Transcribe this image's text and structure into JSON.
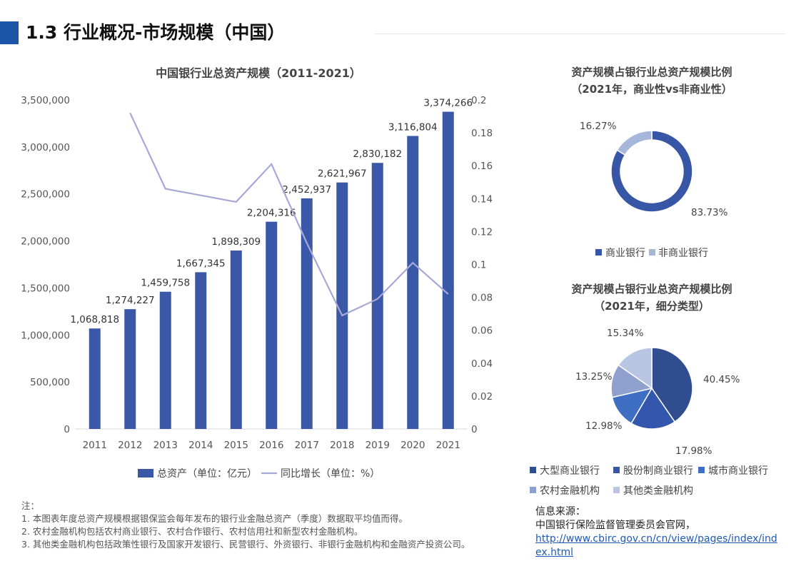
{
  "header": {
    "title": "1.3 行业概况-市场规模（中国）"
  },
  "colors": {
    "bar": "#3b58a8",
    "line": "#a8a8d8",
    "accent": "#1c54a8",
    "commercial": "#3757a6",
    "noncommercial": "#a7b6db",
    "pie": [
      "#2f4d8f",
      "#3556ad",
      "#3f6fc3",
      "#8fa1cf",
      "#b9c6e3"
    ]
  },
  "chart_data": [
    {
      "type": "bar",
      "title": "中国银行业总资产规模（2011-2021）",
      "categories": [
        "2011",
        "2012",
        "2013",
        "2014",
        "2015",
        "2016",
        "2017",
        "2018",
        "2019",
        "2020",
        "2021"
      ],
      "series": [
        {
          "name": "总资产（单位：亿元）",
          "type": "bar",
          "axis": "left",
          "values": [
            1068818,
            1274227,
            1459758,
            1667345,
            1898309,
            2204316,
            2452937,
            2621967,
            2830182,
            3116804,
            3374266
          ],
          "labels": [
            "1,068,818",
            "1,274,227",
            "1,459,758",
            "1,667,345",
            "1,898,309",
            "2,204,316",
            "2,452,937",
            "2,621,967",
            "2,830,182",
            "3,116,804",
            "3,374,266"
          ]
        },
        {
          "name": "同比增长（单位：%）",
          "type": "line",
          "axis": "right",
          "values": [
            null,
            0.192,
            0.146,
            0.142,
            0.138,
            0.161,
            0.113,
            0.069,
            0.079,
            0.101,
            0.082
          ]
        }
      ],
      "ylim_left": [
        0,
        3500000
      ],
      "yticks_left": [
        "0",
        "500,000",
        "1,000,000",
        "1,500,000",
        "2,000,000",
        "2,500,000",
        "3,000,000",
        "3,500,000"
      ],
      "ylim_right": [
        0,
        0.2
      ],
      "yticks_right": [
        "0",
        "0.02",
        "0.04",
        "0.06",
        "0.08",
        "0.1",
        "0.12",
        "0.14",
        "0.16",
        "0.18",
        "0.2"
      ],
      "legend": "bottom",
      "grid": false
    },
    {
      "type": "pie",
      "donut": true,
      "title_line1": "资产规模占银行业总资产规模比例",
      "title_line2": "（2021年，商业性vs非商业性）",
      "slices": [
        {
          "name": "商业银行",
          "value": 83.73,
          "label": "83.73%"
        },
        {
          "name": "非商业银行",
          "value": 16.27,
          "label": "16.27%"
        }
      ],
      "legend": "bottom"
    },
    {
      "type": "pie",
      "title_line1": "资产规模占银行业总资产规模比例",
      "title_line2": "（2021年，细分类型）",
      "slices": [
        {
          "name": "大型商业银行",
          "value": 40.45,
          "label": "40.45%"
        },
        {
          "name": "股份制商业银行",
          "value": 17.98,
          "label": "17.98%"
        },
        {
          "name": "城市商业银行",
          "value": 12.98,
          "label": "12.98%"
        },
        {
          "name": "农村金融机构",
          "value": 13.25,
          "label": "13.25%"
        },
        {
          "name": "其他类金融机构",
          "value": 15.34,
          "label": "15.34%"
        }
      ],
      "legend": "bottom"
    }
  ],
  "notes": {
    "heading": "注：",
    "items": [
      "1.  本图表年度总资产规模根据银保监会每年发布的银行业金融总资产（季度）数据取平均值而得。",
      "2.  农村金融机构包括农村商业银行、农村合作银行、农村信用社和新型农村金融机构。",
      "3.  其他类金融机构包括政策性银行及国家开发银行、民营银行、外资银行、非银行金融机构和金融资产投资公司。"
    ]
  },
  "source": {
    "label": "信息来源：",
    "org": "中国银行保险监督管理委员会官网，",
    "url": "http://www.cbirc.gov.cn/cn/view/pages/index/index.html"
  }
}
